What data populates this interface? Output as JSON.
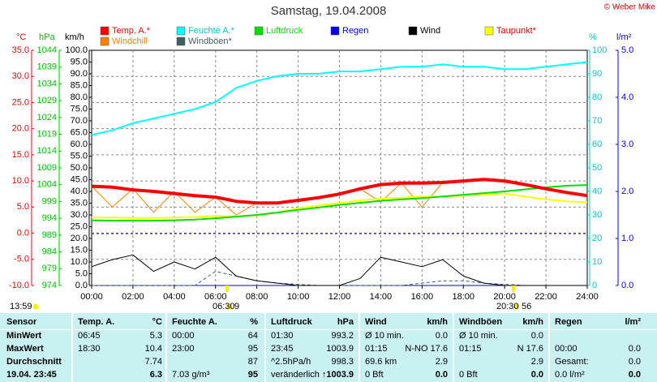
{
  "chart_data": {
    "type": "line",
    "title": "Samstag, 19.04.2008",
    "copyright": "© Weber Mike",
    "x": [
      0,
      1,
      2,
      3,
      4,
      5,
      6,
      7,
      8,
      9,
      10,
      11,
      12,
      13,
      14,
      15,
      16,
      17,
      18,
      19,
      20,
      21,
      22,
      23,
      24
    ],
    "xlim": [
      0,
      24
    ],
    "xticks": [
      {
        "value": 0,
        "label": "00:00"
      },
      {
        "value": 2,
        "label": "02:00"
      },
      {
        "value": 4,
        "label": "04:00"
      },
      {
        "value": 6,
        "label": "06:00"
      },
      {
        "value": 8,
        "label": "08:00"
      },
      {
        "value": 10,
        "label": "10:00"
      },
      {
        "value": 12,
        "label": "12:00"
      },
      {
        "value": 14,
        "label": "14:00"
      },
      {
        "value": 16,
        "label": "16:00"
      },
      {
        "value": 18,
        "label": "18:00"
      },
      {
        "value": 20,
        "label": "20:00"
      },
      {
        "value": 22,
        "label": "22:00"
      },
      {
        "value": 24,
        "label": "24:00"
      }
    ],
    "grid": true,
    "axes": [
      {
        "label": "°C",
        "color": "#ff0000",
        "lim": [
          -10,
          35
        ],
        "ticks": [
          {
            "value": 35,
            "label": "35.0"
          },
          {
            "value": 30,
            "label": "30.0"
          },
          {
            "value": 25,
            "label": "25.0"
          },
          {
            "value": 20,
            "label": "20.0"
          },
          {
            "value": 15,
            "label": "15.0"
          },
          {
            "value": 10,
            "label": "10.0"
          },
          {
            "value": 5,
            "label": "5.0"
          },
          {
            "value": 0,
            "label": "0.0"
          },
          {
            "value": -5,
            "label": "-5.0"
          },
          {
            "value": -10,
            "label": "-10.0"
          }
        ]
      },
      {
        "label": "hPa",
        "color": "#00c000",
        "lim": [
          974,
          1044
        ],
        "ticks": [
          1044,
          1039,
          1034,
          1029,
          1024,
          1019,
          1014,
          1009,
          1004,
          999,
          994,
          989,
          984,
          979,
          974
        ]
      },
      {
        "label": "km/h",
        "color": "#000000",
        "lim": [
          0,
          100
        ],
        "ticks": [
          {
            "value": 100,
            "label": "100.0"
          },
          {
            "value": 95,
            "label": "95.0"
          },
          {
            "value": 90,
            "label": "90.0"
          },
          {
            "value": 85,
            "label": "85.0"
          },
          {
            "value": 80,
            "label": "80.0"
          },
          {
            "value": 75,
            "label": "75.0"
          },
          {
            "value": 70,
            "label": "70.0"
          },
          {
            "value": 65,
            "label": "65.0"
          },
          {
            "value": 60,
            "label": "60.0"
          },
          {
            "value": 55,
            "label": "55.0"
          },
          {
            "value": 50,
            "label": "50.0"
          },
          {
            "value": 45,
            "label": "45.0"
          },
          {
            "value": 40,
            "label": "40.0"
          },
          {
            "value": 35,
            "label": "35.0"
          },
          {
            "value": 30,
            "label": "30.0"
          },
          {
            "value": 25,
            "label": "25.0"
          },
          {
            "value": 20,
            "label": "20.0"
          },
          {
            "value": 15,
            "label": "15.0"
          },
          {
            "value": 10,
            "label": "10.0"
          },
          {
            "value": 5,
            "label": "5.0"
          },
          {
            "value": 0,
            "label": "0.0"
          }
        ]
      },
      {
        "label": "%",
        "color": "#00c8c8",
        "lim": [
          0,
          100
        ],
        "ticks": [
          100,
          90,
          80,
          70,
          60,
          50,
          40,
          30,
          20,
          10,
          0
        ]
      },
      {
        "label": "l/m²",
        "color": "#0000ff",
        "lim": [
          0,
          5
        ],
        "ticks": [
          {
            "value": 5,
            "label": "5.0"
          },
          {
            "value": 4,
            "label": "4.0"
          },
          {
            "value": 3,
            "label": "3.0"
          },
          {
            "value": 2,
            "label": "2.0"
          },
          {
            "value": 1,
            "label": "1.0"
          },
          {
            "value": 0,
            "label": "0.0"
          }
        ]
      }
    ],
    "series": [
      {
        "name": "Temp. A.*",
        "color": "#ff0000",
        "axis": "°C",
        "values": [
          9.0,
          8.8,
          8.3,
          8.0,
          7.6,
          7.2,
          6.9,
          6.1,
          5.8,
          5.8,
          6.3,
          6.8,
          7.5,
          8.5,
          9.3,
          9.6,
          9.6,
          9.7,
          10.0,
          10.3,
          10.0,
          9.3,
          8.5,
          7.8,
          7.2
        ]
      },
      {
        "name": "Feuchte A.*",
        "color": "#00ffff",
        "axis": "%",
        "values": [
          64,
          66,
          69,
          71,
          73,
          75,
          78,
          84,
          87,
          89,
          90,
          90,
          91,
          91,
          92,
          93,
          93,
          94,
          93,
          93,
          92,
          92,
          93,
          94,
          95
        ]
      },
      {
        "name": "Luftdruck",
        "color": "#00e000",
        "axis": "hPa",
        "values": [
          993.4,
          993.3,
          993.3,
          993.3,
          993.4,
          993.6,
          994,
          994.5,
          995,
          995.7,
          996.5,
          997.2,
          998,
          998.6,
          999.2,
          999.6,
          1000,
          1000.5,
          1001,
          1001.5,
          1002,
          1002.6,
          1003.2,
          1003.7,
          1003.9
        ]
      },
      {
        "name": "Regen",
        "color": "#0000ff",
        "axis": "l/m²",
        "values": [
          0,
          0,
          0,
          0,
          0,
          0,
          0,
          0,
          0,
          0,
          0,
          0,
          0,
          0,
          0,
          0,
          0,
          0,
          0,
          0,
          0,
          0,
          0,
          0,
          0
        ]
      },
      {
        "name": "Wind",
        "color": "#000000",
        "axis": "km/h",
        "values": [
          8,
          11,
          13,
          6,
          10,
          7,
          12,
          4,
          2,
          1,
          0,
          0,
          0,
          3,
          12,
          10,
          8,
          11,
          4,
          1,
          0,
          0,
          0,
          0,
          0
        ]
      },
      {
        "name": "Taupunkt*",
        "color": "#ffff00",
        "axis": "°C",
        "values": [
          3.0,
          3.0,
          2.9,
          2.9,
          3.0,
          3.1,
          3.3,
          3.2,
          3.4,
          4.0,
          4.8,
          5.3,
          5.8,
          6.3,
          6.6,
          6.8,
          7.0,
          7.0,
          7.2,
          7.4,
          7.6,
          7.0,
          6.5,
          6.1,
          5.9
        ]
      },
      {
        "name": "Windchill",
        "color": "#ff8000",
        "axis": "°C",
        "values": [
          9.0,
          5.0,
          8.5,
          4.0,
          8.0,
          4.0,
          6.9,
          3.5,
          5.8,
          5.8,
          6.3,
          6.8,
          7.5,
          8.5,
          6.0,
          9.6,
          5.0,
          9.7,
          10.0,
          10.3,
          10.0,
          9.3,
          8.5,
          7.8,
          7.2
        ]
      },
      {
        "name": "Windböen*",
        "color": "#406060",
        "axis": "km/h",
        "values": [
          0,
          0,
          0,
          0,
          0,
          0,
          6,
          4,
          2,
          1,
          0.5,
          0,
          0,
          0,
          0,
          0,
          1,
          2,
          2,
          1,
          0.5,
          0,
          0,
          0,
          0
        ]
      }
    ],
    "annotations": [
      "13:59",
      "06:30",
      "9",
      "20:30",
      "56"
    ]
  },
  "table": {
    "header": [
      "Sensor",
      "Temp. A.",
      "°C",
      "Feuchte A.",
      "%",
      "Luftdruck",
      "hPa",
      "Wind",
      "km/h",
      "Windböen",
      "km/h",
      "Regen",
      "l/m²"
    ],
    "rows": [
      [
        "MinWert",
        "06:45",
        "5.3",
        "00:00",
        "64",
        "01:30",
        "993.2",
        "Ø 10 min.",
        "0.0",
        "Ø 10 min.",
        "0.0",
        null,
        null
      ],
      [
        "MaxWert",
        "18:30",
        "10.4",
        "23:00",
        "95",
        "23:45",
        "1003.9",
        "01:15",
        "N-NO 17.6",
        "01:15",
        "N 17.6",
        "00:00",
        "0.0"
      ],
      [
        "Durchschnitt",
        null,
        "7.74",
        null,
        "87",
        "^2.5hPa/h",
        "998.3",
        "69.6 km",
        "2.9",
        null,
        "2.9",
        "Gesamt:",
        "0.0"
      ],
      [
        "19.04. 23:45",
        null,
        "6.3",
        "7.03 g/m³",
        "95",
        "veränderlich",
        "↑1003.9",
        "0 Bft",
        "0.0",
        "0 Bft",
        "0.0",
        "0.0 l/m²",
        "0.0"
      ]
    ]
  }
}
